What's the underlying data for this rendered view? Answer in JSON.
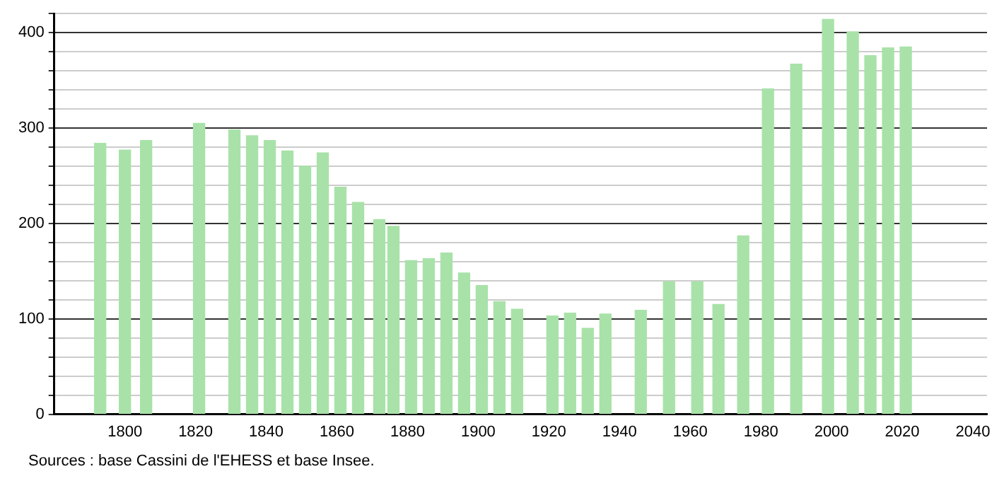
{
  "chart_data": {
    "type": "bar",
    "x": [
      1793,
      1800,
      1806,
      1821,
      1831,
      1836,
      1841,
      1846,
      1851,
      1856,
      1861,
      1866,
      1872,
      1876,
      1881,
      1886,
      1891,
      1896,
      1901,
      1906,
      1911,
      1921,
      1926,
      1931,
      1936,
      1946,
      1954,
      1962,
      1968,
      1975,
      1982,
      1990,
      1999,
      2006,
      2011,
      2016,
      2021
    ],
    "values": [
      284,
      277,
      287,
      305,
      298,
      292,
      287,
      276,
      260,
      274,
      238,
      222,
      204,
      197,
      161,
      163,
      169,
      148,
      135,
      118,
      110,
      103,
      106,
      90,
      105,
      109,
      139,
      139,
      115,
      187,
      341,
      367,
      414,
      401,
      376,
      384,
      385
    ],
    "color": "#a8e2a8",
    "xlim": [
      1780,
      2044
    ],
    "xticks": [
      1800,
      1820,
      1840,
      1860,
      1880,
      1900,
      1920,
      1940,
      1960,
      1980,
      2000,
      2020,
      2040
    ],
    "ylim": [
      0,
      420
    ],
    "yticks": [
      0,
      {
        "value": 20,
        "label": null
      },
      {
        "value": 40,
        "label": null
      },
      {
        "value": 60,
        "label": null
      },
      {
        "value": 80,
        "label": null
      },
      100,
      {
        "value": 120,
        "label": null
      },
      {
        "value": 140,
        "label": null
      },
      {
        "value": 160,
        "label": null
      },
      {
        "value": 180,
        "label": null
      },
      200,
      {
        "value": 220,
        "label": null
      },
      {
        "value": 240,
        "label": null
      },
      {
        "value": 260,
        "label": null
      },
      {
        "value": 280,
        "label": null
      },
      300,
      {
        "value": 320,
        "label": null
      },
      {
        "value": 340,
        "label": null
      },
      {
        "value": 360,
        "label": null
      },
      {
        "value": 380,
        "label": null
      },
      400,
      {
        "value": 420,
        "label": null
      }
    ],
    "grid": "y",
    "legend": false,
    "annotations": [
      "Sources : base Cassini de l'EHESS et base Insee."
    ]
  }
}
